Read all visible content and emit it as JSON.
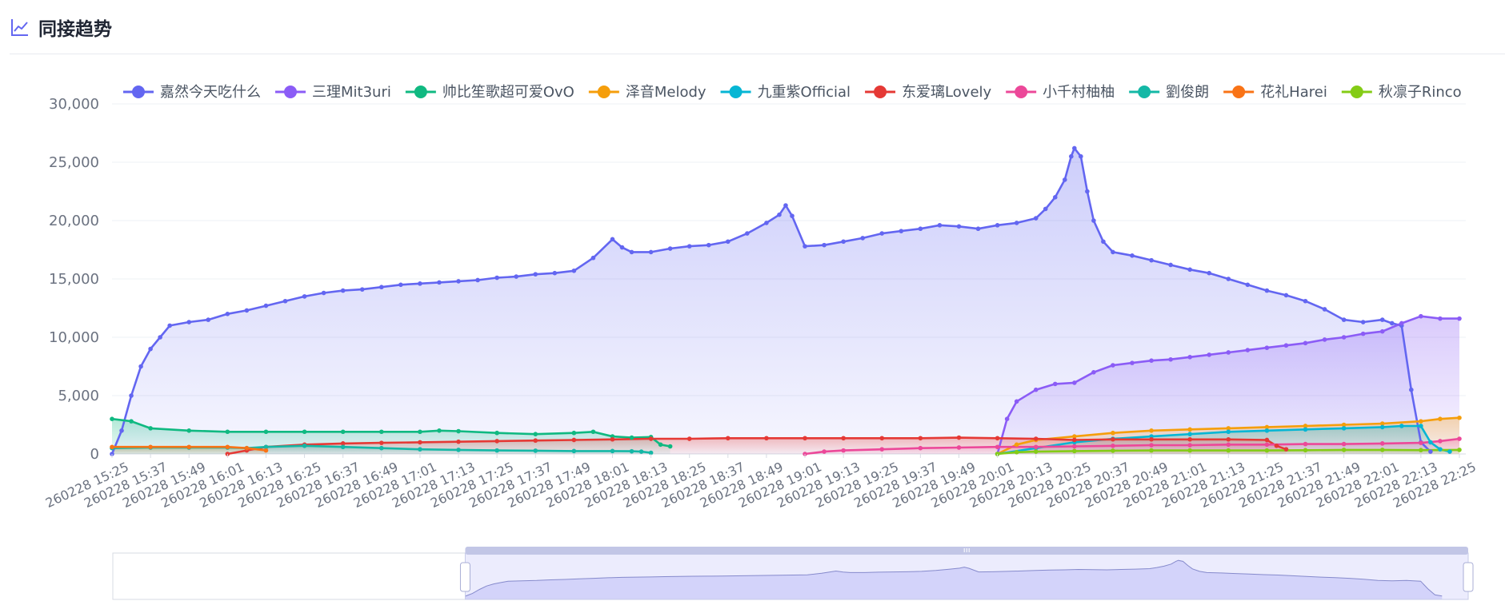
{
  "header": {
    "title": "同接趋势",
    "icon": "line-chart-icon"
  },
  "chart_data": {
    "type": "line",
    "title": "",
    "xlabel": "",
    "ylabel": "",
    "ylim": [
      0,
      30000
    ],
    "y_ticks": [
      "0",
      "5,000",
      "10,000",
      "15,000",
      "20,000",
      "25,000",
      "30,000"
    ],
    "y_tick_values": [
      0,
      5000,
      10000,
      15000,
      20000,
      25000,
      30000
    ],
    "x_range": [
      "260228 15:25",
      "260228 22:27"
    ],
    "x_ticks": [
      "260228 15:25",
      "260228 15:37",
      "260228 15:49",
      "260228 16:01",
      "260228 16:13",
      "260228 16:25",
      "260228 16:37",
      "260228 16:49",
      "260228 17:01",
      "260228 17:13",
      "260228 17:25",
      "260228 17:37",
      "260228 17:49",
      "260228 18:01",
      "260228 18:13",
      "260228 18:25",
      "260228 18:37",
      "260228 18:49",
      "260228 19:01",
      "260228 19:13",
      "260228 19:25",
      "260228 19:37",
      "260228 19:49",
      "260228 20:01",
      "260228 20:13",
      "260228 20:25",
      "260228 20:37",
      "260228 20:49",
      "260228 21:01",
      "260228 21:13",
      "260228 21:25",
      "260228 21:37",
      "260228 21:49",
      "260228 22:01",
      "260228 22:13",
      "260228 22:25"
    ],
    "grid": true,
    "legend_position": "top-left",
    "area_fill": true,
    "series": [
      {
        "name": "嘉然今天吃什么",
        "color": "#6366f1",
        "x": [
          "260228 15:25",
          "260228 15:28",
          "260228 15:31",
          "260228 15:34",
          "260228 15:37",
          "260228 15:40",
          "260228 15:43",
          "260228 15:49",
          "260228 15:55",
          "260228 16:01",
          "260228 16:07",
          "260228 16:13",
          "260228 16:19",
          "260228 16:25",
          "260228 16:31",
          "260228 16:37",
          "260228 16:43",
          "260228 16:49",
          "260228 16:55",
          "260228 17:01",
          "260228 17:07",
          "260228 17:13",
          "260228 17:19",
          "260228 17:25",
          "260228 17:31",
          "260228 17:37",
          "260228 17:43",
          "260228 17:49",
          "260228 17:55",
          "260228 18:01",
          "260228 18:04",
          "260228 18:07",
          "260228 18:13",
          "260228 18:19",
          "260228 18:25",
          "260228 18:31",
          "260228 18:37",
          "260228 18:43",
          "260228 18:49",
          "260228 18:53",
          "260228 18:55",
          "260228 18:57",
          "260228 19:01",
          "260228 19:07",
          "260228 19:13",
          "260228 19:19",
          "260228 19:25",
          "260228 19:31",
          "260228 19:37",
          "260228 19:43",
          "260228 19:49",
          "260228 19:55",
          "260228 20:01",
          "260228 20:07",
          "260228 20:13",
          "260228 20:16",
          "260228 20:19",
          "260228 20:22",
          "260228 20:24",
          "260228 20:25",
          "260228 20:27",
          "260228 20:29",
          "260228 20:31",
          "260228 20:34",
          "260228 20:37",
          "260228 20:43",
          "260228 20:49",
          "260228 20:55",
          "260228 21:01",
          "260228 21:07",
          "260228 21:13",
          "260228 21:19",
          "260228 21:25",
          "260228 21:31",
          "260228 21:37",
          "260228 21:43",
          "260228 21:49",
          "260228 21:55",
          "260228 22:01",
          "260228 22:04",
          "260228 22:07",
          "260228 22:10",
          "260228 22:13",
          "260228 22:16"
        ],
        "values": [
          0,
          2000,
          5000,
          7500,
          9000,
          10000,
          11000,
          11300,
          11500,
          12000,
          12300,
          12700,
          13100,
          13500,
          13800,
          14000,
          14100,
          14300,
          14500,
          14600,
          14700,
          14800,
          14900,
          15100,
          15200,
          15400,
          15500,
          15700,
          16800,
          18400,
          17700,
          17300,
          17300,
          17600,
          17800,
          17900,
          18200,
          18900,
          19800,
          20500,
          21300,
          20400,
          17800,
          17900,
          18200,
          18500,
          18900,
          19100,
          19300,
          19600,
          19500,
          19300,
          19600,
          19800,
          20200,
          21000,
          22000,
          23500,
          25500,
          26200,
          25500,
          22500,
          20000,
          18200,
          17300,
          17000,
          16600,
          16200,
          15800,
          15500,
          15000,
          14500,
          14000,
          13600,
          13100,
          12400,
          11500,
          11300,
          11500,
          11200,
          11000,
          5500,
          1000,
          200
        ]
      },
      {
        "name": "三理Mit3uri",
        "color": "#8b5cf6",
        "x": [
          "260228 20:01",
          "260228 20:04",
          "260228 20:07",
          "260228 20:13",
          "260228 20:19",
          "260228 20:25",
          "260228 20:31",
          "260228 20:37",
          "260228 20:43",
          "260228 20:49",
          "260228 20:55",
          "260228 21:01",
          "260228 21:07",
          "260228 21:13",
          "260228 21:19",
          "260228 21:25",
          "260228 21:31",
          "260228 21:37",
          "260228 21:43",
          "260228 21:49",
          "260228 21:55",
          "260228 22:01",
          "260228 22:07",
          "260228 22:13",
          "260228 22:19",
          "260228 22:25"
        ],
        "values": [
          0,
          3000,
          4500,
          5500,
          6000,
          6100,
          7000,
          7600,
          7800,
          8000,
          8100,
          8300,
          8500,
          8700,
          8900,
          9100,
          9300,
          9500,
          9800,
          10000,
          10300,
          10500,
          11200,
          11800,
          11600,
          11600
        ]
      },
      {
        "name": "帅比笙歌超可爱OvO",
        "color": "#10b981",
        "x": [
          "260228 15:25",
          "260228 15:31",
          "260228 15:37",
          "260228 15:49",
          "260228 16:01",
          "260228 16:13",
          "260228 16:25",
          "260228 16:37",
          "260228 16:49",
          "260228 17:01",
          "260228 17:07",
          "260228 17:13",
          "260228 17:25",
          "260228 17:37",
          "260228 17:49",
          "260228 17:55",
          "260228 18:01",
          "260228 18:07",
          "260228 18:13",
          "260228 18:16",
          "260228 18:19"
        ],
        "values": [
          3000,
          2800,
          2200,
          2000,
          1900,
          1900,
          1900,
          1900,
          1900,
          1900,
          2000,
          1950,
          1800,
          1700,
          1800,
          1900,
          1500,
          1400,
          1450,
          800,
          650
        ]
      },
      {
        "name": "泽音Melody",
        "color": "#f59e0b",
        "x": [
          "260228 20:01",
          "260228 20:07",
          "260228 20:13",
          "260228 20:25",
          "260228 20:37",
          "260228 20:49",
          "260228 21:01",
          "260228 21:13",
          "260228 21:25",
          "260228 21:37",
          "260228 21:49",
          "260228 22:01",
          "260228 22:13",
          "260228 22:19",
          "260228 22:25"
        ],
        "values": [
          0,
          800,
          1200,
          1500,
          1800,
          2000,
          2100,
          2200,
          2300,
          2400,
          2500,
          2600,
          2800,
          3000,
          3100
        ]
      },
      {
        "name": "九重紫Official",
        "color": "#06b6d4",
        "x": [
          "260228 20:01",
          "260228 20:13",
          "260228 20:25",
          "260228 20:37",
          "260228 20:49",
          "260228 21:01",
          "260228 21:13",
          "260228 21:25",
          "260228 21:37",
          "260228 21:49",
          "260228 22:01",
          "260228 22:07",
          "260228 22:13",
          "260228 22:16",
          "260228 22:19",
          "260228 22:22"
        ],
        "values": [
          0,
          500,
          1000,
          1300,
          1500,
          1700,
          1900,
          2000,
          2100,
          2200,
          2300,
          2400,
          2400,
          1000,
          400,
          200
        ]
      },
      {
        "name": "东爱璃Lovely",
        "color": "#e53935",
        "x": [
          "260228 16:01",
          "260228 16:07",
          "260228 16:13",
          "260228 16:25",
          "260228 16:37",
          "260228 16:49",
          "260228 17:01",
          "260228 17:13",
          "260228 17:25",
          "260228 17:37",
          "260228 17:49",
          "260228 18:01",
          "260228 18:13",
          "260228 18:25",
          "260228 18:37",
          "260228 18:49",
          "260228 19:01",
          "260228 19:13",
          "260228 19:25",
          "260228 19:37",
          "260228 19:49",
          "260228 20:01",
          "260228 20:13",
          "260228 20:25",
          "260228 20:37",
          "260228 20:49",
          "260228 21:01",
          "260228 21:13",
          "260228 21:25",
          "260228 21:28",
          "260228 21:31"
        ],
        "values": [
          0,
          300,
          600,
          800,
          900,
          950,
          1000,
          1050,
          1100,
          1150,
          1200,
          1250,
          1300,
          1300,
          1350,
          1350,
          1350,
          1350,
          1350,
          1350,
          1400,
          1350,
          1300,
          1200,
          1250,
          1250,
          1250,
          1250,
          1200,
          700,
          400
        ]
      },
      {
        "name": "小千村柚柚",
        "color": "#ec4899",
        "x": [
          "260228 19:01",
          "260228 19:07",
          "260228 19:13",
          "260228 19:25",
          "260228 19:37",
          "260228 19:49",
          "260228 20:01",
          "260228 20:13",
          "260228 20:25",
          "260228 20:37",
          "260228 20:49",
          "260228 21:01",
          "260228 21:13",
          "260228 21:25",
          "260228 21:37",
          "260228 21:49",
          "260228 22:01",
          "260228 22:13",
          "260228 22:19",
          "260228 22:25"
        ],
        "values": [
          0,
          200,
          300,
          400,
          500,
          550,
          600,
          600,
          650,
          700,
          750,
          750,
          800,
          800,
          850,
          850,
          900,
          950,
          1100,
          1300
        ]
      },
      {
        "name": "劉俊朗",
        "color": "#14b8a6",
        "x": [
          "260228 15:25",
          "260228 15:37",
          "260228 15:49",
          "260228 16:01",
          "260228 16:07",
          "260228 16:13",
          "260228 16:25",
          "260228 16:37",
          "260228 16:49",
          "260228 17:01",
          "260228 17:13",
          "260228 17:25",
          "260228 17:37",
          "260228 17:49",
          "260228 18:01",
          "260228 18:07",
          "260228 18:10",
          "260228 18:13"
        ],
        "values": [
          500,
          550,
          550,
          550,
          500,
          600,
          700,
          600,
          500,
          400,
          350,
          300,
          280,
          250,
          250,
          230,
          200,
          100
        ]
      },
      {
        "name": "花礼Harei",
        "color": "#f97316",
        "x": [
          "260228 15:25",
          "260228 15:37",
          "260228 15:49",
          "260228 16:01",
          "260228 16:07",
          "260228 16:13"
        ],
        "values": [
          600,
          600,
          600,
          600,
          500,
          300
        ]
      },
      {
        "name": "秋凛子Rinco",
        "color": "#84cc16",
        "x": [
          "260228 20:01",
          "260228 20:07",
          "260228 20:13",
          "260228 20:25",
          "260228 20:37",
          "260228 20:49",
          "260228 21:01",
          "260228 21:13",
          "260228 21:25",
          "260228 21:37",
          "260228 21:49",
          "260228 22:01",
          "260228 22:13",
          "260228 22:25"
        ],
        "values": [
          0,
          150,
          200,
          250,
          280,
          300,
          300,
          300,
          300,
          320,
          350,
          350,
          330,
          350
        ]
      }
    ],
    "dataZoom": {
      "start_fraction": 0.26,
      "end_fraction": 1.0
    }
  }
}
